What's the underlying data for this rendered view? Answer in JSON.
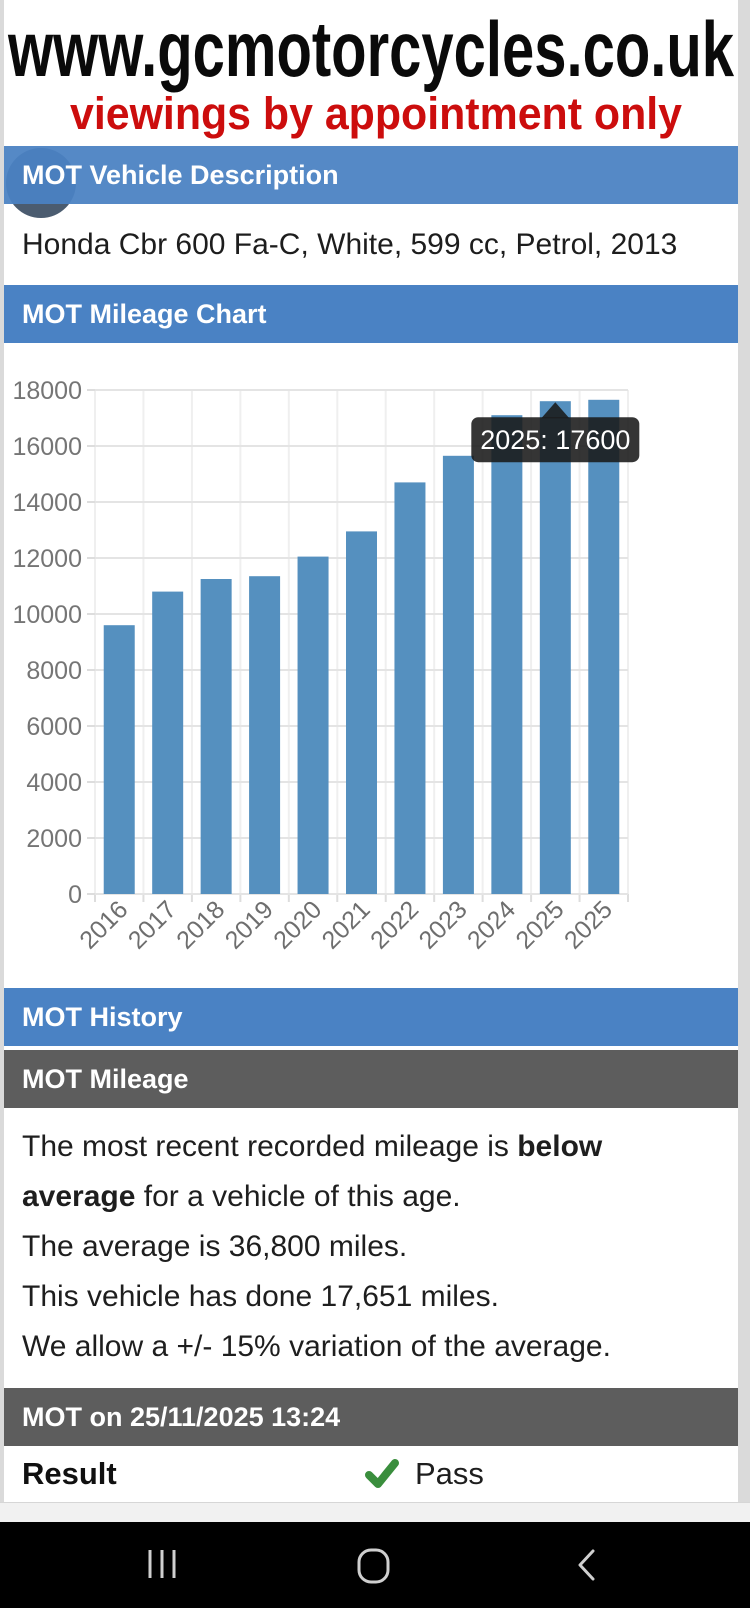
{
  "header": {
    "site_url": "www.gcmotorcycles.co.uk",
    "tagline": "viewings by appointment only"
  },
  "colors": {
    "header_text": "#0a0a0a",
    "tagline_red": "#cc0d0d",
    "section_blue": "#4a82c4",
    "section_gray": "#5d5d5d",
    "bar_blue": "#5590bf",
    "check_green": "#3a8e3d",
    "nav_icon_gray": "#cfcfcf"
  },
  "sections": {
    "vehicle_description": {
      "title": "MOT Vehicle Description",
      "text": "Honda Cbr 600 Fa-C, White, 599 cc, Petrol, 2013"
    },
    "mileage_chart": {
      "title": "MOT Mileage Chart"
    },
    "history": {
      "title": "MOT History"
    },
    "mileage_summary": {
      "title": "MOT Mileage",
      "line1_prefix": "The most recent recorded mileage is ",
      "line1_bold": "below",
      "line2_bold": "average",
      "line2_suffix": " for a vehicle of this age.",
      "line3": "The average is 36,800 miles.",
      "line4": "This vehicle has done 17,651 miles.",
      "line5": "We allow a +/- 15% variation of the average."
    },
    "mot_entry": {
      "title": "MOT on 25/11/2025 13:24",
      "result_label": "Result",
      "result_value": "Pass",
      "result_icon": "check-icon"
    }
  },
  "chart_data": {
    "type": "bar",
    "title": "MOT Mileage Chart",
    "categories": [
      "2016",
      "2017",
      "2018",
      "2019",
      "2020",
      "2021",
      "2022",
      "2023",
      "2024",
      "2025",
      "2025"
    ],
    "values": [
      9600,
      10800,
      11250,
      11350,
      12050,
      12950,
      14700,
      15650,
      17100,
      17600,
      17650
    ],
    "xlabel": "",
    "ylabel": "",
    "ylim": [
      0,
      18000
    ],
    "ytick_step": 2000,
    "grid": true,
    "legend": false,
    "bar_color": "#5590bf",
    "tooltip": {
      "index": 9,
      "text": "2025: 17600"
    }
  },
  "navbar": {
    "recents_icon": "recent-apps-icon",
    "home_icon": "home-icon",
    "back_icon": "back-icon"
  }
}
